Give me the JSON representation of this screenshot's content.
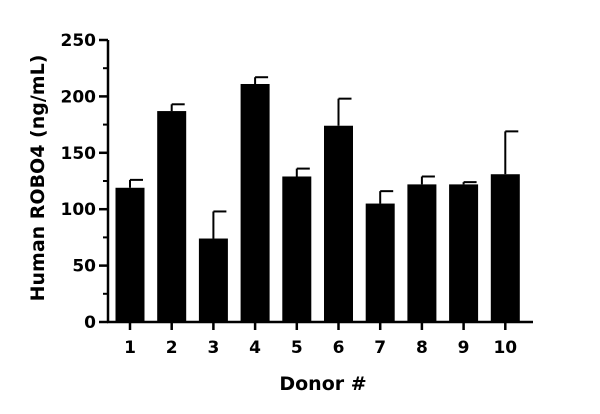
{
  "chart_data": {
    "type": "bar",
    "title": "",
    "xlabel": "Donor #",
    "ylabel": "Human ROBO4 (ng/mL)",
    "ylim": [
      0,
      250
    ],
    "yticks": [
      0,
      50,
      100,
      150,
      200,
      250
    ],
    "ytick_labels": [
      "0",
      "50",
      "100",
      "150",
      "200",
      "250"
    ],
    "categories": [
      "1",
      "2",
      "3",
      "4",
      "5",
      "6",
      "7",
      "8",
      "9",
      "10"
    ],
    "values": [
      119,
      187,
      74,
      211,
      129,
      174,
      105,
      122,
      122,
      131
    ],
    "error_plus": [
      7,
      6,
      24,
      6,
      7,
      24,
      11,
      7,
      2,
      38
    ],
    "bar_color": "#000000",
    "grid": false,
    "legend": "none"
  }
}
